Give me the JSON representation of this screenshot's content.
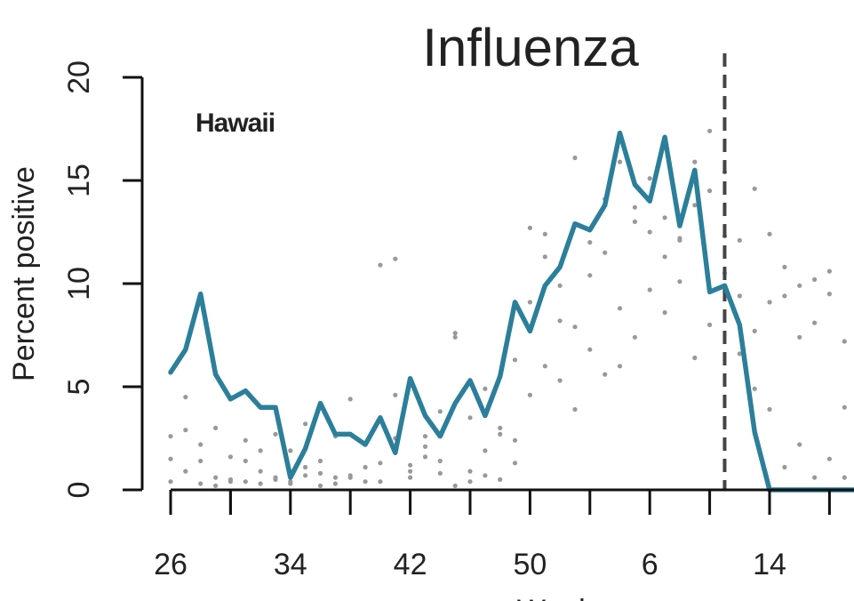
{
  "chart_data": {
    "type": "line",
    "title": "Influenza",
    "annotation": "Hawaii",
    "xlabel": "Week",
    "ylabel": "Percent positive",
    "ylim": [
      0,
      20
    ],
    "yticks": [
      "0",
      "5",
      "10",
      "15",
      "20"
    ],
    "xtick_labels": [
      "26",
      "34",
      "42",
      "50",
      "6",
      "14"
    ],
    "grid": false,
    "legend": "none",
    "vertical_marker": {
      "week": "11",
      "style": "dashed"
    },
    "series": [
      {
        "style": "line",
        "color": "#2b7f9a",
        "x": [
          26,
          27,
          28,
          29,
          30,
          31,
          32,
          33,
          34,
          35,
          36,
          37,
          38,
          39,
          40,
          41,
          42,
          43,
          44,
          45,
          46,
          47,
          48,
          49,
          50,
          51,
          52,
          1,
          2,
          3,
          4,
          5,
          6,
          7,
          8,
          9,
          10,
          11,
          12,
          13,
          14,
          15,
          16,
          17,
          18,
          19,
          20
        ],
        "values": [
          5.7,
          6.8,
          9.5,
          5.6,
          4.4,
          4.8,
          4.0,
          4.0,
          0.6,
          2.0,
          4.2,
          2.7,
          2.7,
          2.2,
          3.5,
          1.8,
          5.4,
          3.6,
          2.6,
          4.2,
          5.3,
          3.6,
          5.5,
          9.1,
          7.7,
          9.9,
          10.8,
          12.9,
          12.6,
          13.8,
          17.3,
          14.8,
          14.0,
          17.1,
          12.8,
          15.5,
          9.6,
          9.9,
          8.0,
          2.8,
          0,
          0,
          0,
          0,
          0,
          0,
          0
        ]
      },
      {
        "style": "points",
        "color": "#999999",
        "x": [
          26,
          27,
          28,
          29,
          30,
          31,
          32,
          33,
          34,
          35,
          36,
          37,
          38,
          39,
          40,
          41,
          42,
          43,
          44,
          45,
          46,
          47,
          48,
          49,
          50,
          51,
          52,
          1,
          2,
          3,
          4,
          5,
          6,
          7,
          8,
          9,
          10,
          11,
          12,
          13,
          14,
          15,
          16,
          17,
          18,
          19,
          20,
          26,
          27,
          28,
          29,
          30,
          31,
          32,
          33,
          34,
          35,
          36,
          37,
          38,
          39,
          40,
          41,
          42,
          43,
          44,
          45,
          46,
          47,
          48,
          49,
          50,
          51,
          52,
          1,
          2,
          3,
          4,
          5,
          6,
          7,
          8,
          9,
          10,
          11,
          12,
          13,
          14,
          15,
          16,
          17,
          18,
          19,
          20,
          26,
          27,
          28,
          29,
          30,
          31,
          32,
          33,
          34,
          35,
          36,
          37,
          38,
          39,
          40,
          41,
          42,
          43,
          44,
          45,
          46,
          47,
          48,
          49,
          50,
          51,
          52,
          1,
          2,
          3,
          4,
          5,
          6,
          7,
          8,
          9,
          10,
          11,
          12,
          13,
          14,
          15,
          16,
          17,
          18,
          19,
          20
        ],
        "values": [
          1.5,
          2.9,
          1.4,
          0.6,
          0.4,
          1.4,
          0.9,
          0.5,
          0.4,
          1.1,
          0.8,
          0.3,
          0.6,
          2.2,
          0.4,
          2.5,
          1.2,
          1.6,
          0.8,
          0.2,
          0.4,
          1.9,
          3.0,
          2.4,
          4.6,
          6.0,
          5.3,
          3.9,
          6.8,
          5.6,
          6.0,
          7.4,
          9.7,
          8.6,
          10.1,
          6.4,
          8.0,
          10.5,
          6.6,
          4.9,
          3.9,
          1.1,
          2.2,
          0.6,
          1.5,
          0.6,
          0.5,
          2.6,
          4.5,
          2.2,
          3.0,
          1.6,
          2.4,
          1.9,
          2.7,
          1.9,
          3.2,
          1.4,
          2.6,
          4.4,
          1.1,
          10.9,
          4.6,
          0.9,
          2.6,
          3.8,
          7.6,
          3.5,
          4.9,
          2.7,
          6.3,
          9.1,
          11.3,
          8.2,
          7.9,
          10.4,
          11.5,
          8.8,
          13.0,
          12.5,
          11.3,
          12.2,
          13.8,
          14.5,
          12.3,
          12.1,
          7.7,
          12.4,
          10.8,
          7.4,
          8.1,
          10.6,
          4.0,
          3.5,
          0.4,
          0.9,
          0.3,
          0.2,
          0.5,
          0.4,
          0.3,
          0.6,
          0.3,
          0.7,
          0.2,
          0.6,
          0.7,
          0.4,
          1.3,
          11.2,
          0.6,
          2.1,
          1.4,
          7.4,
          0.9,
          0.7,
          0.5,
          1.3,
          12.7,
          12.4,
          9.9,
          16.1,
          12.0,
          14.1,
          15.9,
          13.7,
          15.1,
          13.2,
          12.1,
          15.9,
          17.4,
          15.4,
          9.4,
          14.6,
          9.1,
          9.4,
          9.9,
          10.2,
          9.5,
          7.2,
          5.8
        ]
      }
    ]
  }
}
